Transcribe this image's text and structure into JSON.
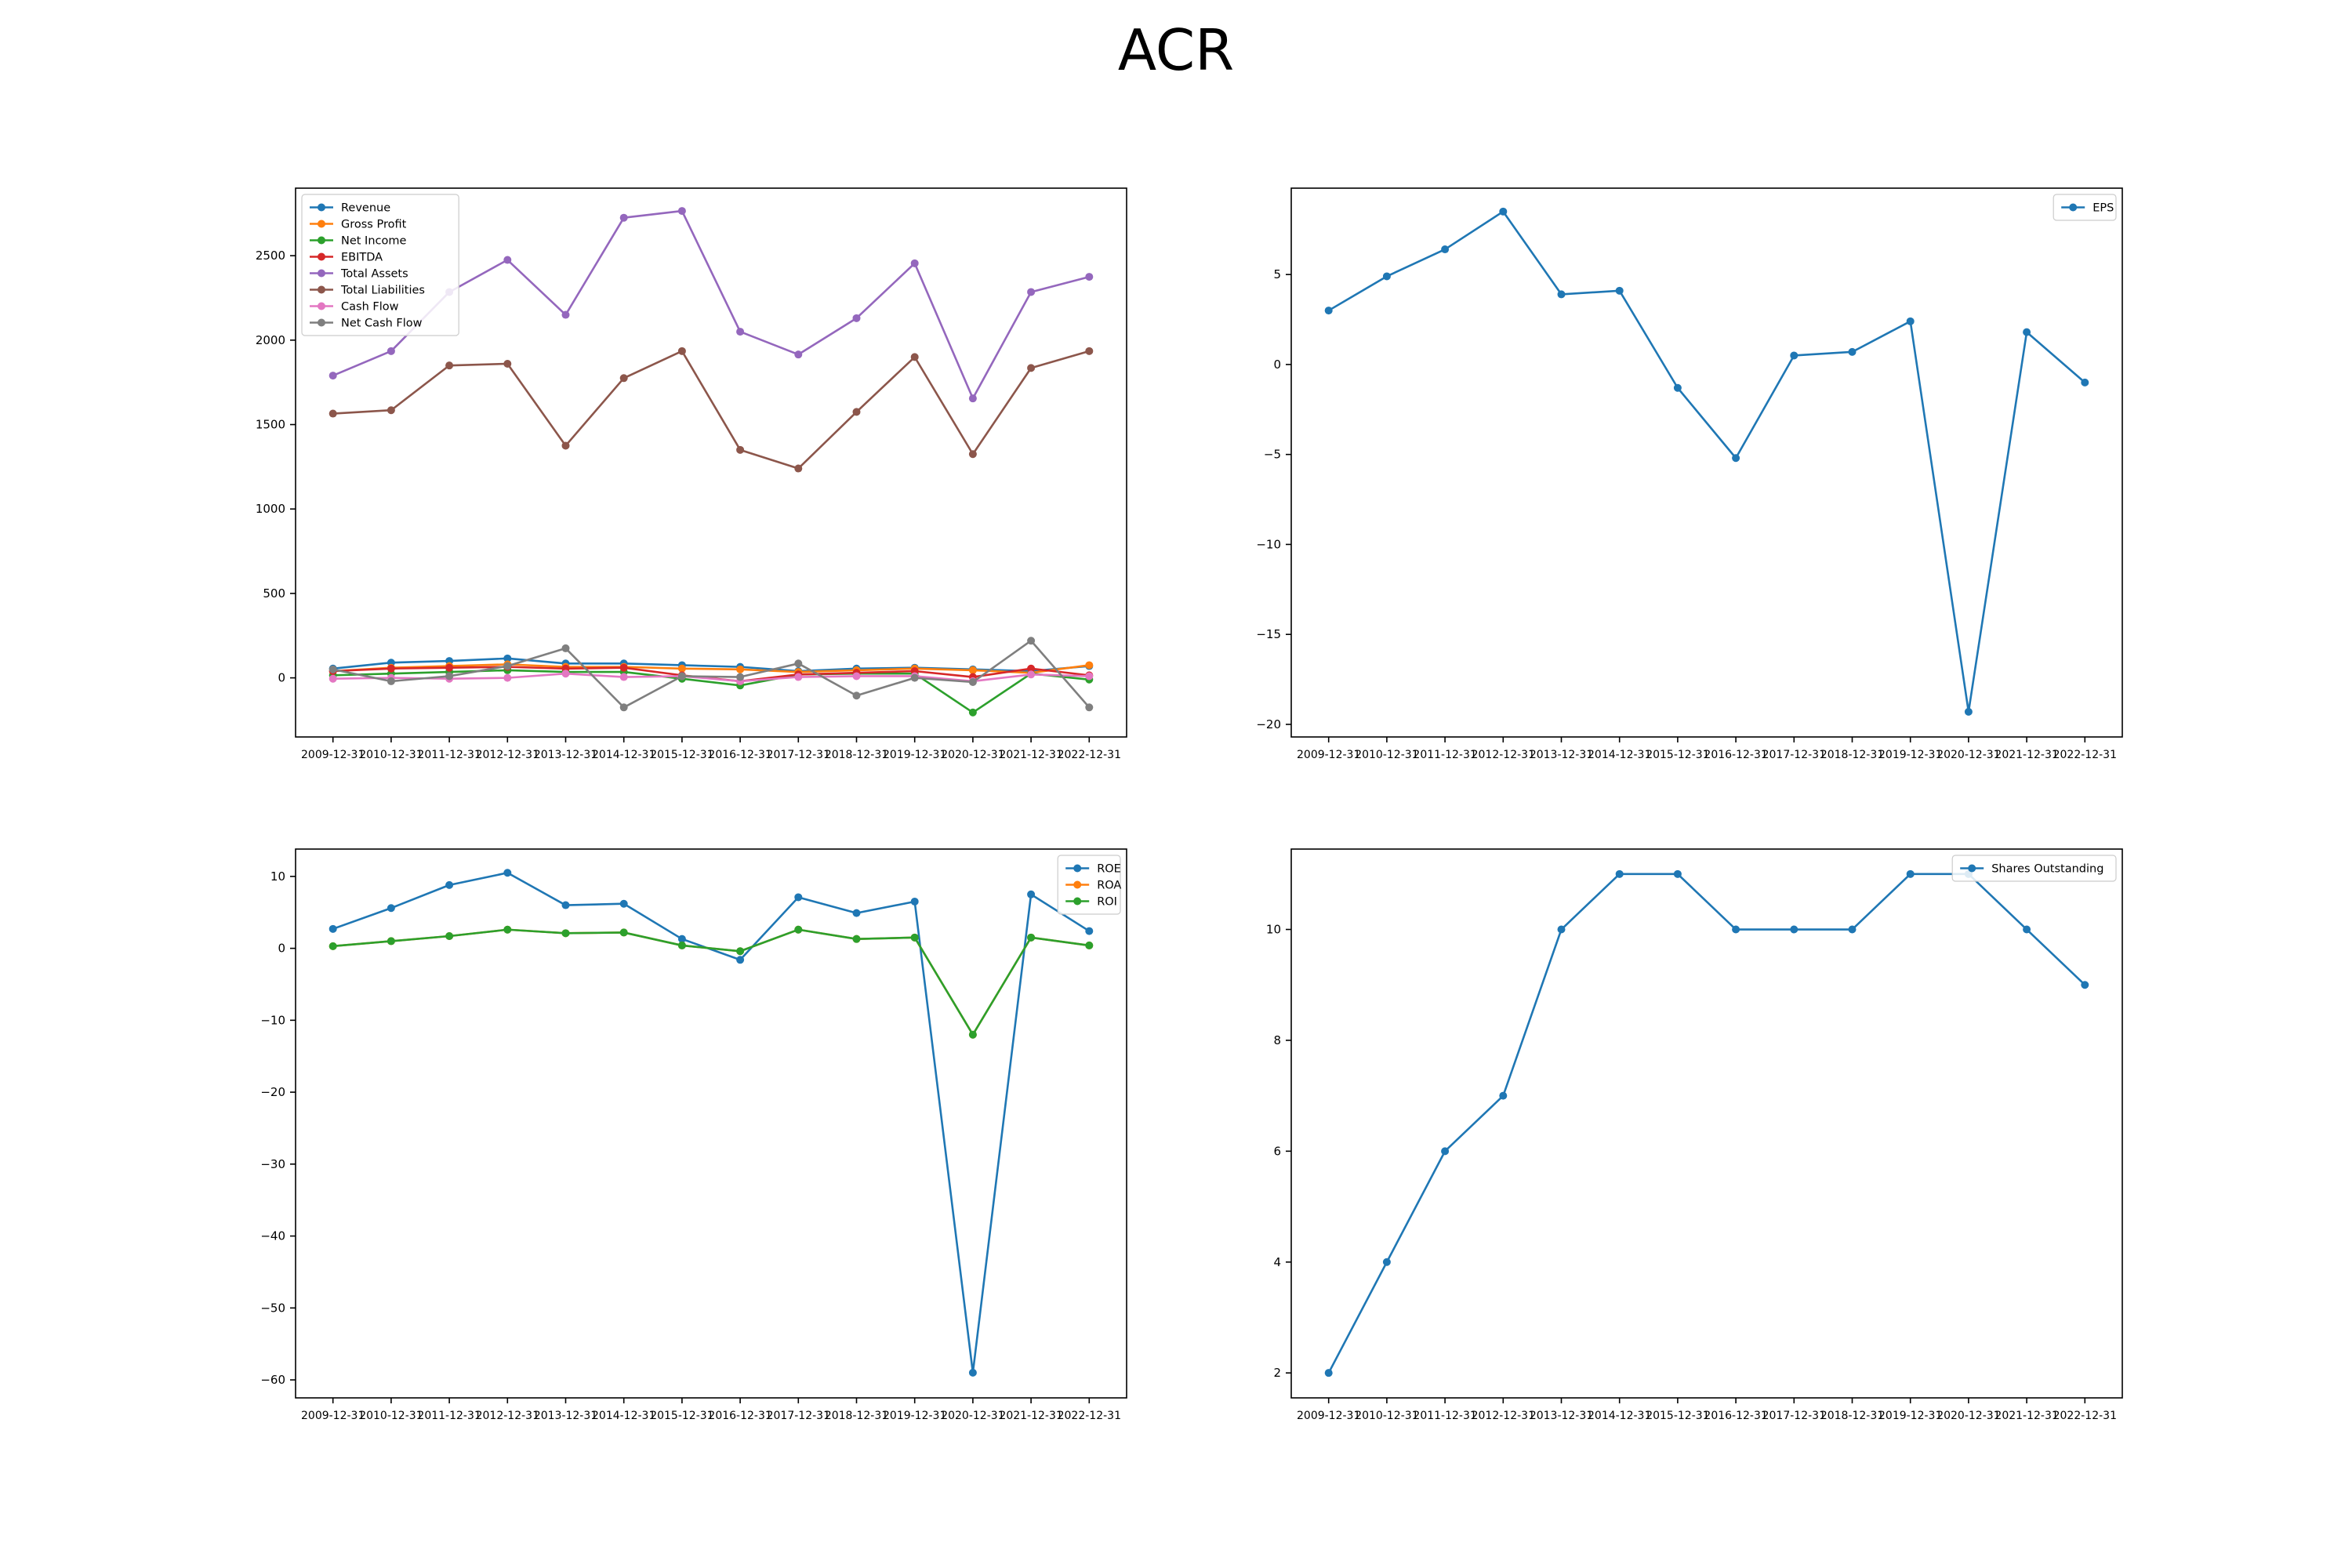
{
  "figure": {
    "title": "ACR"
  },
  "chart_data": [
    {
      "type": "line",
      "x": [
        "2009-12-31",
        "2010-12-31",
        "2011-12-31",
        "2012-12-31",
        "2013-12-31",
        "2014-12-31",
        "2015-12-31",
        "2016-12-31",
        "2017-12-31",
        "2018-12-31",
        "2019-12-31",
        "2020-12-31",
        "2021-12-31",
        "2022-12-31"
      ],
      "ylim": [
        -350,
        2900
      ],
      "yticks": [
        0,
        500,
        1000,
        1500,
        2000,
        2500
      ],
      "grid": false,
      "legend_position": "upper-left",
      "series": [
        {
          "name": "Revenue",
          "color": "#1f77b4",
          "values": [
            55,
            90,
            100,
            115,
            85,
            85,
            75,
            65,
            40,
            55,
            60,
            50,
            40,
            70
          ]
        },
        {
          "name": "Gross Profit",
          "color": "#ff7f0e",
          "values": [
            40,
            60,
            70,
            80,
            65,
            65,
            55,
            50,
            35,
            45,
            55,
            45,
            30,
            75
          ]
        },
        {
          "name": "Net Income",
          "color": "#2ca02c",
          "values": [
            15,
            25,
            35,
            45,
            35,
            35,
            -5,
            -45,
            20,
            25,
            25,
            -205,
            25,
            -10
          ]
        },
        {
          "name": "EBITDA",
          "color": "#d62728",
          "values": [
            40,
            55,
            60,
            65,
            55,
            60,
            15,
            -20,
            20,
            30,
            40,
            5,
            55,
            15
          ]
        },
        {
          "name": "Total Assets",
          "color": "#9467bd",
          "values": [
            1790,
            1935,
            2285,
            2475,
            2150,
            2725,
            2765,
            2050,
            1915,
            2130,
            2455,
            1655,
            2285,
            2375
          ]
        },
        {
          "name": "Total Liabilities",
          "color": "#8c564b",
          "values": [
            1565,
            1585,
            1850,
            1860,
            1375,
            1775,
            1935,
            1350,
            1240,
            1575,
            1900,
            1325,
            1835,
            1935
          ]
        },
        {
          "name": "Cash Flow",
          "color": "#e377c2",
          "values": [
            -5,
            0,
            -5,
            0,
            25,
            5,
            10,
            -20,
            5,
            10,
            10,
            -20,
            20,
            10
          ]
        },
        {
          "name": "Net Cash Flow",
          "color": "#7f7f7f",
          "values": [
            50,
            -20,
            10,
            70,
            175,
            -175,
            10,
            5,
            85,
            -105,
            0,
            -25,
            220,
            -175
          ]
        }
      ]
    },
    {
      "type": "line",
      "x": [
        "2009-12-31",
        "2010-12-31",
        "2011-12-31",
        "2012-12-31",
        "2013-12-31",
        "2014-12-31",
        "2015-12-31",
        "2016-12-31",
        "2017-12-31",
        "2018-12-31",
        "2019-12-31",
        "2020-12-31",
        "2021-12-31",
        "2022-12-31"
      ],
      "ylim": [
        -20.7,
        9.8
      ],
      "yticks": [
        -20,
        -15,
        -10,
        -5,
        0,
        5
      ],
      "grid": false,
      "legend_position": "upper-right",
      "series": [
        {
          "name": "EPS",
          "color": "#1f77b4",
          "values": [
            3.0,
            4.9,
            6.4,
            8.5,
            3.9,
            4.1,
            -1.3,
            -5.2,
            0.5,
            0.7,
            2.4,
            -19.3,
            1.8,
            -1.0
          ]
        }
      ]
    },
    {
      "type": "line",
      "x": [
        "2009-12-31",
        "2010-12-31",
        "2011-12-31",
        "2012-12-31",
        "2013-12-31",
        "2014-12-31",
        "2015-12-31",
        "2016-12-31",
        "2017-12-31",
        "2018-12-31",
        "2019-12-31",
        "2020-12-31",
        "2021-12-31",
        "2022-12-31"
      ],
      "ylim": [
        -62.5,
        13.8
      ],
      "yticks": [
        -60,
        -50,
        -40,
        -30,
        -20,
        -10,
        0,
        10
      ],
      "grid": false,
      "legend_position": "upper-right",
      "series": [
        {
          "name": "ROE",
          "color": "#1f77b4",
          "values": [
            2.7,
            5.6,
            8.8,
            10.5,
            6.0,
            6.2,
            1.3,
            -1.6,
            7.1,
            4.9,
            6.5,
            -59.0,
            7.5,
            2.4
          ]
        },
        {
          "name": "ROA",
          "color": "#ff7f0e",
          "values": [
            0.3,
            1.0,
            1.7,
            2.6,
            2.1,
            2.2,
            0.4,
            -0.4,
            2.6,
            1.3,
            1.5,
            -12.0,
            1.5,
            0.4
          ]
        },
        {
          "name": "ROI",
          "color": "#2ca02c",
          "values": [
            0.3,
            1.0,
            1.7,
            2.6,
            2.1,
            2.2,
            0.4,
            -0.4,
            2.6,
            1.3,
            1.5,
            -12.0,
            1.5,
            0.4
          ]
        }
      ]
    },
    {
      "type": "line",
      "x": [
        "2009-12-31",
        "2010-12-31",
        "2011-12-31",
        "2012-12-31",
        "2013-12-31",
        "2014-12-31",
        "2015-12-31",
        "2016-12-31",
        "2017-12-31",
        "2018-12-31",
        "2019-12-31",
        "2020-12-31",
        "2021-12-31",
        "2022-12-31"
      ],
      "ylim": [
        1.55,
        11.45
      ],
      "yticks": [
        2,
        4,
        6,
        8,
        10
      ],
      "grid": false,
      "legend_position": "upper-right",
      "series": [
        {
          "name": "Shares Outstanding",
          "color": "#1f77b4",
          "values": [
            2,
            4,
            6,
            7,
            10,
            11,
            11,
            10,
            10,
            10,
            11,
            11,
            10,
            9
          ]
        }
      ]
    }
  ]
}
